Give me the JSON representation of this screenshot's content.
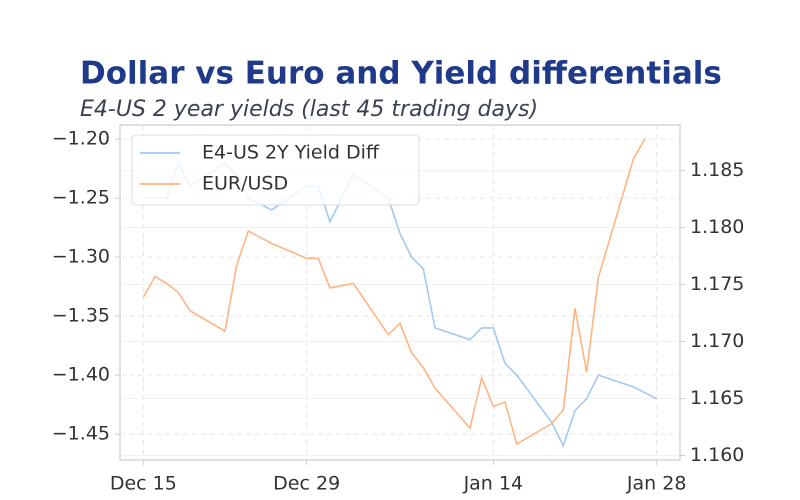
{
  "chart_data": {
    "type": "line",
    "title": "Dollar vs Euro and Yield differentials",
    "subtitle": "E4-US 2 year yields (last 45 trading days)",
    "x": [
      "Dec 15",
      "Dec 16",
      "Dec 17",
      "Dec 18",
      "Dec 19",
      "Dec 22",
      "Dec 23",
      "Dec 24",
      "Dec 26",
      "Dec 29",
      "Dec 30",
      "Dec 31",
      "Jan 2",
      "Jan 5",
      "Jan 6",
      "Jan 7",
      "Jan 8",
      "Jan 9",
      "Jan 12",
      "Jan 13",
      "Jan 14",
      "Jan 15",
      "Jan 16",
      "Jan 19",
      "Jan 20",
      "Jan 21",
      "Jan 22",
      "Jan 23",
      "Jan 26",
      "Jan 27",
      "Jan 28"
    ],
    "series": [
      {
        "name": "E4-US 2Y Yield Diff",
        "color": "#a1c9f4",
        "values": [
          -1.25,
          -1.25,
          -1.25,
          -1.22,
          -1.24,
          -1.22,
          -1.23,
          -1.25,
          -1.26,
          -1.24,
          -1.24,
          -1.27,
          -1.23,
          -1.25,
          -1.28,
          -1.3,
          -1.31,
          -1.36,
          -1.37,
          -1.36,
          -1.36,
          -1.39,
          -1.4,
          -1.44,
          -1.46,
          -1.43,
          -1.42,
          -1.4,
          -1.41,
          -1.415,
          -1.42
        ]
      },
      {
        "name": "EUR/USD",
        "color": "#ffb482",
        "axis": "y2",
        "values": [
          1.1739,
          1.1757,
          1.1751,
          1.1743,
          1.1727,
          1.1709,
          1.1767,
          1.1797,
          1.1786,
          1.1773,
          1.1773,
          1.1747,
          1.1751,
          1.1706,
          1.1716,
          1.169,
          1.1677,
          1.1659,
          1.1624,
          1.1668,
          1.1643,
          1.1647,
          1.161,
          1.1628,
          1.164,
          1.1729,
          1.1673,
          1.1756,
          1.186,
          1.1878,
          null
        ]
      }
    ],
    "xlim": [
      "Dec 13",
      "Jan 30"
    ],
    "xticks": [
      "Dec 15",
      "Dec 29",
      "Jan 14",
      "Jan 28"
    ],
    "ylim": [
      -1.472,
      -1.188
    ],
    "yticks": [
      {
        "value": -1.2,
        "label": "−1.20"
      },
      {
        "value": -1.25,
        "label": "−1.25"
      },
      {
        "value": -1.3,
        "label": "−1.30"
      },
      {
        "value": -1.35,
        "label": "−1.35"
      },
      {
        "value": -1.4,
        "label": "−1.40"
      },
      {
        "value": -1.45,
        "label": "−1.45"
      }
    ],
    "y2lim": [
      1.1596,
      1.189
    ],
    "y2ticks": [
      {
        "value": 1.16,
        "label": "1.160"
      },
      {
        "value": 1.165,
        "label": "1.165"
      },
      {
        "value": 1.17,
        "label": "1.170"
      },
      {
        "value": 1.175,
        "label": "1.175"
      },
      {
        "value": 1.18,
        "label": "1.180"
      },
      {
        "value": 1.185,
        "label": "1.185"
      }
    ],
    "grid": true,
    "legend": "upper left"
  }
}
